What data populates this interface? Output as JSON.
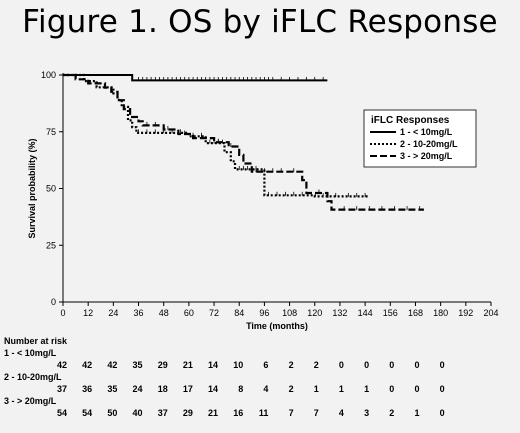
{
  "title": "Figure 1. OS by iFLC Response",
  "chart_data": {
    "type": "line",
    "subtype": "kaplan-meier step",
    "xlabel": "Time (months)",
    "ylabel": "Survival probability (%)",
    "xlim": [
      0,
      204
    ],
    "ylim": [
      0,
      100
    ],
    "x_ticks": [
      0,
      12,
      24,
      36,
      48,
      60,
      72,
      84,
      96,
      108,
      120,
      132,
      144,
      156,
      168,
      180,
      192,
      204
    ],
    "y_ticks": [
      0,
      25,
      50,
      75,
      100
    ],
    "grid": false,
    "legend": {
      "title": "iFLC Responses",
      "placement": "right-middle",
      "entries": [
        "1 - < 10mg/L",
        "2 - 10-20mg/L",
        "3 - > 20mg/L"
      ]
    },
    "series": [
      {
        "name": "1 - < 10mg/L",
        "style": "solid",
        "points": [
          [
            0,
            100
          ],
          [
            33,
            100
          ],
          [
            33,
            97.6
          ],
          [
            126,
            97.6
          ]
        ],
        "censored": [
          36,
          38,
          40,
          42,
          44,
          46,
          48,
          50,
          52,
          54,
          56,
          58,
          60,
          62,
          64,
          66,
          68,
          70,
          72,
          74,
          76,
          78,
          80,
          82,
          84,
          86,
          88,
          90,
          92,
          94,
          96,
          98,
          100,
          104,
          108,
          112,
          116,
          120,
          124
        ]
      },
      {
        "name": "2 - 10-20mg/L",
        "style": "dotted",
        "points": [
          [
            0,
            100
          ],
          [
            10,
            100
          ],
          [
            10,
            97.3
          ],
          [
            16,
            97.3
          ],
          [
            16,
            94.6
          ],
          [
            24,
            94.6
          ],
          [
            24,
            91.9
          ],
          [
            26,
            91.9
          ],
          [
            26,
            89
          ],
          [
            28,
            89
          ],
          [
            28,
            86
          ],
          [
            31,
            86
          ],
          [
            31,
            80
          ],
          [
            33,
            80
          ],
          [
            33,
            77
          ],
          [
            35,
            77
          ],
          [
            35,
            74.5
          ],
          [
            60,
            74.5
          ],
          [
            60,
            73
          ],
          [
            68,
            73
          ],
          [
            68,
            70
          ],
          [
            77,
            70
          ],
          [
            77,
            66
          ],
          [
            80,
            66
          ],
          [
            80,
            62
          ],
          [
            82,
            62
          ],
          [
            82,
            58.4
          ],
          [
            96,
            58.4
          ],
          [
            96,
            47
          ],
          [
            120,
            47
          ],
          [
            120,
            46.5
          ],
          [
            146,
            46.5
          ]
        ],
        "censored": [
          36,
          40,
          44,
          48,
          52,
          56,
          62,
          66,
          70,
          72,
          74,
          76,
          84,
          86,
          88,
          90,
          92,
          98,
          102,
          106,
          110,
          114,
          124,
          130,
          136,
          140,
          144
        ]
      },
      {
        "name": "3 - > 20mg/L",
        "style": "dashed",
        "points": [
          [
            0,
            100
          ],
          [
            6,
            100
          ],
          [
            6,
            98.1
          ],
          [
            12,
            98.1
          ],
          [
            12,
            96.3
          ],
          [
            20,
            96.3
          ],
          [
            20,
            94.4
          ],
          [
            23,
            94.4
          ],
          [
            23,
            92.6
          ],
          [
            26,
            92.6
          ],
          [
            26,
            88.9
          ],
          [
            29,
            88.9
          ],
          [
            29,
            85
          ],
          [
            32,
            85
          ],
          [
            32,
            81.5
          ],
          [
            36,
            81.5
          ],
          [
            36,
            79.6
          ],
          [
            38,
            79.6
          ],
          [
            38,
            77.8
          ],
          [
            48,
            77.8
          ],
          [
            48,
            76
          ],
          [
            55,
            76
          ],
          [
            55,
            74
          ],
          [
            62,
            74
          ],
          [
            62,
            72.2
          ],
          [
            72,
            72.2
          ],
          [
            72,
            70.4
          ],
          [
            79,
            70.4
          ],
          [
            79,
            68.5
          ],
          [
            84,
            68.5
          ],
          [
            84,
            64.8
          ],
          [
            86,
            64.8
          ],
          [
            86,
            61
          ],
          [
            90,
            61
          ],
          [
            90,
            57.4
          ],
          [
            114,
            57.4
          ],
          [
            114,
            53.7
          ],
          [
            116,
            53.7
          ],
          [
            116,
            48
          ],
          [
            126,
            48
          ],
          [
            126,
            44.4
          ],
          [
            128,
            44.4
          ],
          [
            128,
            40.7
          ],
          [
            172,
            40.7
          ]
        ],
        "censored": [
          40,
          44,
          50,
          58,
          66,
          74,
          80,
          92,
          96,
          100,
          104,
          110,
          122,
          134,
          140,
          146,
          152,
          158,
          164,
          170
        ]
      }
    ],
    "number_at_risk": {
      "header": "Number at risk",
      "groups": [
        {
          "label": "1 - < 10mg/L",
          "values": [
            42,
            42,
            42,
            35,
            29,
            21,
            14,
            10,
            6,
            2,
            2,
            0,
            0,
            0,
            0,
            0
          ]
        },
        {
          "label": "2 - 10-20mg/L",
          "values": [
            37,
            36,
            35,
            24,
            18,
            17,
            14,
            8,
            4,
            2,
            1,
            1,
            1,
            0,
            0,
            0
          ]
        },
        {
          "label": "3 - > 20mg/L",
          "values": [
            54,
            54,
            50,
            40,
            37,
            29,
            21,
            16,
            11,
            7,
            7,
            4,
            3,
            2,
            1,
            0
          ]
        }
      ]
    },
    "colors": {
      "line": "#000000",
      "background": "#f2f2f2"
    }
  }
}
